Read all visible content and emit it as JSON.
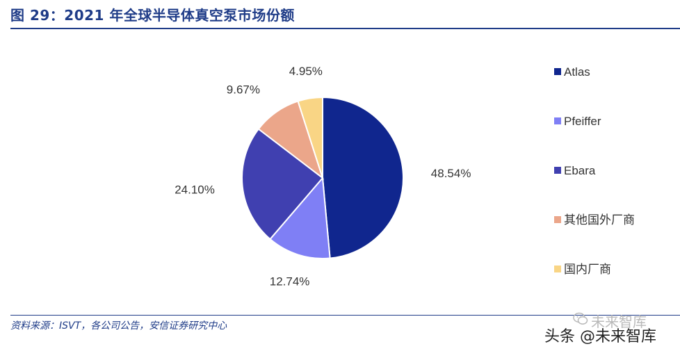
{
  "header": {
    "title": "图 29：2021 年全球半导体真空泵市场份额"
  },
  "footer": {
    "source": "资料来源：ISVT，各公司公告，安信证券研究中心",
    "watermark_faint": "未来智库",
    "watermark": "头条 @未来智库"
  },
  "colors": {
    "accent": "#1F3C88"
  },
  "chart_data": {
    "type": "pie",
    "title": "",
    "legend_position": "right",
    "slices": [
      {
        "name": "Atlas",
        "value": 48.54,
        "label": "48.54%",
        "color": "#10268E"
      },
      {
        "name": "Pfeiffer",
        "value": 12.74,
        "label": "12.74%",
        "color": "#7F7FF5"
      },
      {
        "name": "Ebara",
        "value": 24.1,
        "label": "24.10%",
        "color": "#4040B0"
      },
      {
        "name": "其他国外厂商",
        "value": 9.67,
        "label": "9.67%",
        "color": "#EBA68A"
      },
      {
        "name": "国内厂商",
        "value": 4.95,
        "label": "4.95%",
        "color": "#F9D585"
      }
    ]
  }
}
